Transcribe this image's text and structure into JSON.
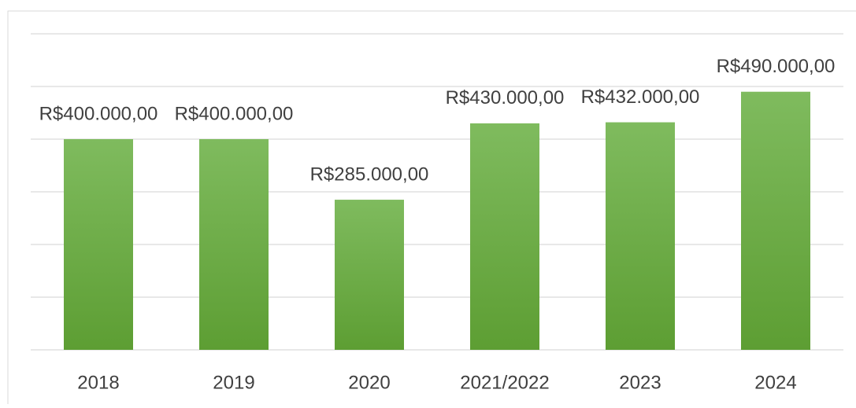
{
  "chart_data": {
    "type": "bar",
    "categories": [
      "2018",
      "2019",
      "2020",
      "2021/2022",
      "2023",
      "2024"
    ],
    "values": [
      400000,
      400000,
      285000,
      430000,
      432000,
      490000
    ],
    "value_labels": [
      "R$400.000,00",
      "R$400.000,00",
      "R$285.000,00",
      "R$430.000,00",
      "R$432.000,00",
      "R$490.000,00"
    ],
    "color": "#6aad41",
    "ylim": [
      0,
      600000
    ],
    "yticks": [
      0,
      100000,
      200000,
      300000,
      400000,
      500000,
      600000
    ],
    "grid": true
  }
}
